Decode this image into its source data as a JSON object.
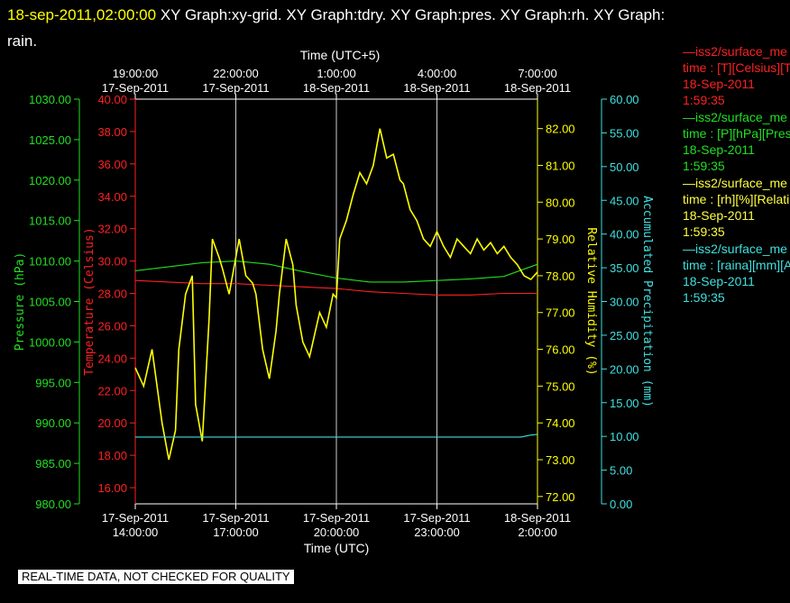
{
  "header": {
    "timestamp": "18-sep-2011,02:00:00",
    "text": "XY Graph:xy-grid.  XY Graph:tdry.  XY Graph:pres.  XY Graph:rh.  XY Graph:",
    "text2": "rain."
  },
  "footer": "REAL-TIME DATA, NOT CHECKED FOR QUALITY",
  "legend": [
    {
      "name": "—iss2/surface_me",
      "var": "time : [T][Celsius][T",
      "date": "18-Sep-2011",
      "time": "1:59:35",
      "color": "#ff2020"
    },
    {
      "name": "—iss2/surface_me",
      "var": "time : [P][hPa][Pres",
      "date": "18-Sep-2011",
      "time": "1:59:35",
      "color": "#20e020"
    },
    {
      "name": "—iss2/surface_me",
      "var": "time : [rh][%][Relati",
      "date": "18-Sep-2011",
      "time": "1:59:35",
      "color": "#ffff40"
    },
    {
      "name": "—iss2/surface_me",
      "var": "time : [raina][mm][A",
      "date": "18-Sep-2011",
      "time": "1:59:35",
      "color": "#40e0e0"
    }
  ],
  "chart_data": {
    "type": "line",
    "colors": {
      "temperature": "#ff2020",
      "pressure": "#20e020",
      "rh": "#ffff00",
      "rain": "#40e0e0",
      "grid": "#ffffff"
    },
    "x_range_hours": [
      0,
      12
    ],
    "bottom_axis": {
      "label": "Time (UTC)",
      "ticks": [
        {
          "h": 0,
          "l1": "17-Sep-2011",
          "l2": "14:00:00"
        },
        {
          "h": 3,
          "l1": "17-Sep-2011",
          "l2": "17:00:00"
        },
        {
          "h": 6,
          "l1": "17-Sep-2011",
          "l2": "20:00:00"
        },
        {
          "h": 9,
          "l1": "17-Sep-2011",
          "l2": "23:00:00"
        },
        {
          "h": 12,
          "l1": "18-Sep-2011",
          "l2": "2:00:00"
        }
      ]
    },
    "top_axis": {
      "label": "Time (UTC+5)",
      "ticks": [
        {
          "h": 0,
          "l1": "19:00:00",
          "l2": "17-Sep-2011"
        },
        {
          "h": 3,
          "l1": "22:00:00",
          "l2": "17-Sep-2011"
        },
        {
          "h": 6,
          "l1": "1:00:00",
          "l2": "18-Sep-2011"
        },
        {
          "h": 9,
          "l1": "4:00:00",
          "l2": "18-Sep-2011"
        },
        {
          "h": 12,
          "l1": "7:00:00",
          "l2": "18-Sep-2011"
        }
      ]
    },
    "pressure_axis": {
      "label": "Pressure (hPa)",
      "range": [
        980,
        1030
      ],
      "ticks": [
        "980.00",
        "985.00",
        "990.00",
        "995.00",
        "1000.00",
        "1005.00",
        "1010.00",
        "1015.00",
        "1020.00",
        "1025.00",
        "1030.00"
      ]
    },
    "temperature_axis": {
      "label": "Temperature (Celsius)",
      "range": [
        15,
        40
      ],
      "ticks": [
        "16.00",
        "18.00",
        "20.00",
        "22.00",
        "24.00",
        "26.00",
        "28.00",
        "30.00",
        "32.00",
        "34.00",
        "36.00",
        "38.00",
        "40.00"
      ]
    },
    "rh_axis": {
      "label": "Relative Humidity (%)",
      "range": [
        71.8,
        82.8
      ],
      "ticks": [
        "72.00",
        "73.00",
        "74.00",
        "75.00",
        "76.00",
        "77.00",
        "78.00",
        "79.00",
        "80.00",
        "81.00",
        "82.00"
      ]
    },
    "rain_axis": {
      "label": "Accumulated Precipitation (mm)",
      "range": [
        0,
        60
      ],
      "ticks": [
        "0.00",
        "5.00",
        "10.00",
        "15.00",
        "20.00",
        "25.00",
        "30.00",
        "35.00",
        "40.00",
        "45.00",
        "50.00",
        "55.00",
        "60.00"
      ]
    },
    "series": [
      {
        "name": "iss2/surface_me [T][Celsius]",
        "axis": "temperature",
        "color": "#ff2020",
        "x": [
          0,
          1,
          2,
          3,
          4,
          5,
          6,
          7,
          8,
          9,
          10,
          11,
          12
        ],
        "y": [
          28.8,
          28.7,
          28.6,
          28.6,
          28.5,
          28.4,
          28.3,
          28.1,
          28.0,
          27.9,
          27.9,
          28.0,
          28.0
        ]
      },
      {
        "name": "iss2/surface_me [P][hPa]",
        "axis": "pressure",
        "color": "#20e020",
        "x": [
          0,
          1,
          2,
          3,
          4,
          5,
          6,
          7,
          8,
          9,
          10,
          11,
          12
        ],
        "y": [
          1008.8,
          1009.3,
          1009.8,
          1010.0,
          1009.6,
          1008.7,
          1007.9,
          1007.4,
          1007.4,
          1007.6,
          1007.8,
          1008.1,
          1009.6
        ]
      },
      {
        "name": "iss2/surface_me [rh][%]",
        "axis": "rh",
        "color": "#ffff00",
        "x": [
          0,
          0.25,
          0.5,
          0.8,
          1.0,
          1.2,
          1.3,
          1.5,
          1.7,
          1.8,
          2.0,
          2.2,
          2.3,
          2.5,
          2.6,
          2.8,
          3.0,
          3.1,
          3.3,
          3.5,
          3.6,
          3.8,
          4.0,
          4.2,
          4.3,
          4.5,
          4.7,
          4.8,
          5.0,
          5.2,
          5.5,
          5.7,
          5.9,
          6.0,
          6.1,
          6.3,
          6.5,
          6.7,
          6.9,
          7.1,
          7.3,
          7.5,
          7.7,
          7.9,
          8.0,
          8.2,
          8.4,
          8.6,
          8.8,
          9.0,
          9.2,
          9.4,
          9.6,
          9.8,
          10.0,
          10.2,
          10.4,
          10.6,
          10.8,
          11.0,
          11.2,
          11.4,
          11.6,
          11.8,
          12.0
        ],
        "y": [
          75.5,
          75.0,
          76.0,
          74.0,
          73.0,
          73.8,
          76.0,
          77.5,
          78.0,
          74.5,
          73.5,
          76.8,
          79.0,
          78.5,
          78.2,
          77.5,
          78.5,
          79.0,
          78.0,
          77.8,
          77.5,
          76.0,
          75.2,
          76.5,
          77.5,
          79.0,
          78.3,
          77.2,
          76.2,
          75.8,
          77.0,
          76.6,
          77.5,
          77.4,
          79.0,
          79.5,
          80.2,
          80.8,
          80.5,
          81.0,
          82.0,
          81.2,
          81.3,
          80.6,
          80.5,
          79.8,
          79.5,
          79.0,
          78.8,
          79.2,
          78.8,
          78.5,
          79.0,
          78.8,
          78.6,
          79.0,
          78.7,
          78.9,
          78.6,
          78.8,
          78.5,
          78.3,
          78.0,
          77.9,
          78.1
        ]
      },
      {
        "name": "iss2/surface_me [raina][mm]",
        "axis": "rain",
        "color": "#40e0e0",
        "x": [
          0,
          2,
          4,
          6,
          8,
          10,
          11.5,
          11.8,
          12
        ],
        "y": [
          9.9,
          9.9,
          9.9,
          9.9,
          9.9,
          9.9,
          9.9,
          10.2,
          10.3
        ]
      }
    ]
  }
}
